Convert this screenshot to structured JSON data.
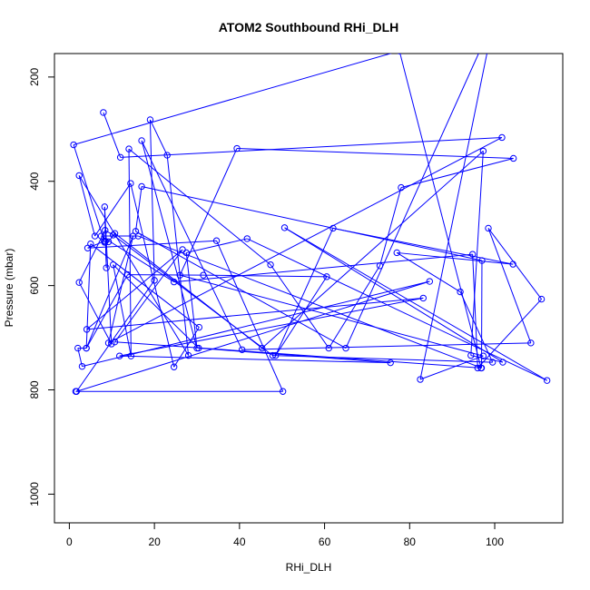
{
  "chart_data": {
    "type": "line",
    "title": "ATOM2 Southbound RHi_DLH",
    "xlabel": "RHi_DLH",
    "ylabel": "Pressure (mbar)",
    "xlim": [
      -3.5,
      116
    ],
    "ylim": [
      1055,
      155
    ],
    "y_reversed": true,
    "x_ticks": [
      0,
      20,
      40,
      60,
      80,
      100
    ],
    "x_tick_labels": [
      "0",
      "20",
      "40",
      "60",
      "80",
      "100"
    ],
    "y_ticks": [
      200,
      400,
      600,
      800,
      1000
    ],
    "y_tick_labels": [
      "200",
      "400",
      "600",
      "800",
      "1000"
    ],
    "grid": false,
    "legend": "none",
    "series": [
      {
        "color": "#0000ff",
        "marker": "open-circle",
        "points": [
          [
            8,
            268
          ],
          [
            12,
            354
          ],
          [
            101.7,
            316
          ],
          [
            9.2,
            710
          ],
          [
            15,
            505
          ],
          [
            4,
            720
          ],
          [
            2,
            720
          ],
          [
            3,
            755
          ],
          [
            84.7,
            592
          ],
          [
            1.7,
            803
          ],
          [
            20,
            590
          ],
          [
            19,
            282
          ],
          [
            23,
            350
          ],
          [
            28,
            734
          ],
          [
            2.3,
            389
          ],
          [
            6,
            505
          ],
          [
            14.4,
            404
          ],
          [
            24.6,
            756
          ],
          [
            30.5,
            680
          ],
          [
            5,
            520
          ],
          [
            4,
            720
          ],
          [
            13.7,
            579
          ],
          [
            31.5,
            580
          ],
          [
            60.5,
            583
          ],
          [
            48.5,
            734
          ],
          [
            62,
            490
          ],
          [
            104.3,
            559
          ],
          [
            77,
            537
          ],
          [
            91.9,
            612
          ],
          [
            99.5,
            747
          ],
          [
            47.8,
            734
          ],
          [
            10.3,
            503
          ],
          [
            8.4,
            494
          ],
          [
            2.3,
            594
          ],
          [
            9.9,
            712
          ],
          [
            8.3,
            449
          ],
          [
            8.7,
            566
          ],
          [
            8.5,
            515
          ],
          [
            8.3,
            517
          ],
          [
            9.2,
            516
          ],
          [
            10.7,
            500
          ],
          [
            45.3,
            720
          ],
          [
            97.3,
            342
          ],
          [
            94.4,
            734
          ],
          [
            101.9,
            747
          ],
          [
            50.6,
            489
          ],
          [
            112.3,
            782
          ],
          [
            41.8,
            510
          ],
          [
            27.5,
            537
          ],
          [
            30,
            720
          ],
          [
            17,
            322
          ],
          [
            40.6,
            723
          ],
          [
            108.5,
            710
          ],
          [
            98.5,
            490
          ],
          [
            111,
            626
          ],
          [
            96,
            758
          ],
          [
            94.8,
            540
          ],
          [
            24.6,
            593
          ],
          [
            7.5,
            505
          ],
          [
            16.2,
            505
          ],
          [
            96.9,
            758
          ],
          [
            97,
            552
          ],
          [
            17,
            410
          ],
          [
            15.6,
            496
          ],
          [
            65,
            720
          ],
          [
            99.8,
            90
          ],
          [
            82.5,
            780
          ],
          [
            97.3,
            735
          ],
          [
            26,
            580
          ],
          [
            39.4,
            337
          ],
          [
            104.4,
            356
          ],
          [
            78,
            412
          ],
          [
            73,
            562
          ],
          [
            61,
            720
          ],
          [
            47.3,
            560
          ],
          [
            14,
            338
          ],
          [
            14.5,
            735
          ],
          [
            10.3,
            560
          ],
          [
            30.4,
            720
          ],
          [
            75.5,
            748
          ],
          [
            11.8,
            735
          ],
          [
            83.2,
            624
          ],
          [
            4.1,
            684
          ],
          [
            26.6,
            531
          ],
          [
            10.7,
            708
          ],
          [
            96.8,
            758
          ],
          [
            77.6,
            150
          ],
          [
            1,
            330
          ],
          [
            8.2,
            515
          ],
          [
            4.3,
            528
          ],
          [
            34.6,
            514
          ],
          [
            50.2,
            803
          ],
          [
            1.5,
            803
          ]
        ]
      }
    ]
  }
}
